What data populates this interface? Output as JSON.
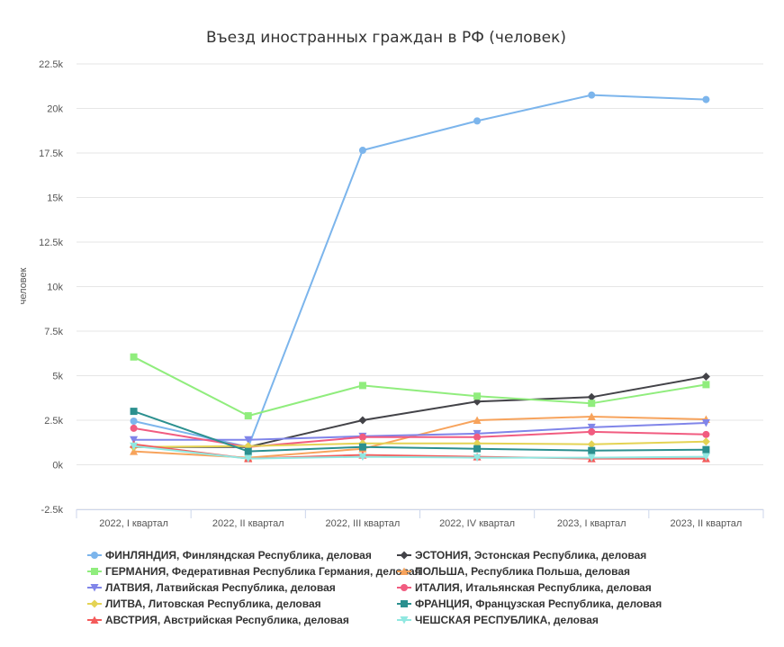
{
  "chart_data": {
    "type": "line",
    "title": "Въезд иностранных граждан в РФ (человек)",
    "xlabel": "",
    "ylabel": "человек",
    "categories": [
      "2022, I квартал",
      "2022, II квартал",
      "2022, III квартал",
      "2022, IV квартал",
      "2023, I квартал",
      "2023, II квартал"
    ],
    "ylim": [
      -2500,
      22500
    ],
    "yticks": [
      -2500,
      0,
      2500,
      5000,
      7500,
      10000,
      12500,
      15000,
      17500,
      20000,
      22500
    ],
    "ytick_labels": [
      "-2.5k",
      "0k",
      "2.5k",
      "5k",
      "7.5k",
      "10k",
      "12.5k",
      "15k",
      "17.5k",
      "20k",
      "22.5k"
    ],
    "grid": "horizontal",
    "legend_position": "bottom",
    "series": [
      {
        "name": "ФИНЛЯНДИЯ, Финляндская Республика, деловая",
        "color": "#7cb5ec",
        "marker": "circle",
        "values": [
          2450,
          1000,
          17650,
          19300,
          20750,
          20500
        ]
      },
      {
        "name": "ЭСТОНИЯ, Эстонская Республика, деловая",
        "color": "#434348",
        "marker": "diamond",
        "values": [
          1000,
          1000,
          2500,
          3550,
          3800,
          4950
        ]
      },
      {
        "name": "ГЕРМАНИЯ, Федеративная Республика Германия, деловая",
        "color": "#90ed7d",
        "marker": "square",
        "values": [
          6050,
          2750,
          4450,
          3850,
          3450,
          4500
        ]
      },
      {
        "name": "ПОЛЬША, Республика Польша, деловая",
        "color": "#f7a35c",
        "marker": "triangle",
        "values": [
          750,
          400,
          900,
          2500,
          2700,
          2550
        ]
      },
      {
        "name": "ЛАТВИЯ, Латвийская Республика, деловая",
        "color": "#8085e9",
        "marker": "triangle-down",
        "values": [
          1400,
          1400,
          1600,
          1750,
          2100,
          2350
        ]
      },
      {
        "name": "ИТАЛИЯ, Итальянская Республика, деловая",
        "color": "#f15c80",
        "marker": "circle",
        "values": [
          2050,
          1000,
          1550,
          1550,
          1850,
          1700
        ]
      },
      {
        "name": "ЛИТВА, Литовская Республика, деловая",
        "color": "#e4d354",
        "marker": "diamond",
        "values": [
          1000,
          1050,
          1200,
          1200,
          1150,
          1300
        ]
      },
      {
        "name": "ФРАНЦИЯ, Французская Республика, деловая",
        "color": "#2b908f",
        "marker": "square",
        "values": [
          3000,
          750,
          1000,
          900,
          800,
          850
        ]
      },
      {
        "name": "АВСТРИЯ, Австрийская Республика, деловая",
        "color": "#f45b5b",
        "marker": "triangle",
        "values": [
          1150,
          350,
          550,
          450,
          350,
          350
        ]
      },
      {
        "name": "ЧЕШСКАЯ РЕСПУБЛИКА, деловая",
        "color": "#91e8e1",
        "marker": "triangle-down",
        "values": [
          1050,
          350,
          450,
          400,
          400,
          450
        ]
      }
    ]
  }
}
